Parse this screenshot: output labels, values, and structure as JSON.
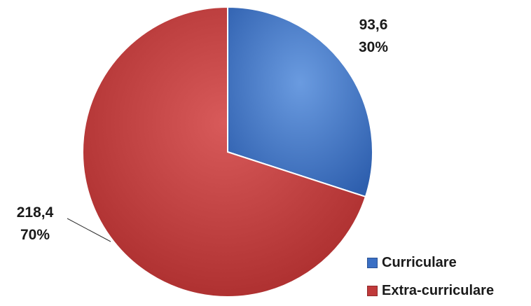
{
  "chart_data": {
    "type": "pie",
    "categories": [
      "Curriculare",
      "Extra-curriculare"
    ],
    "values": [
      93.6,
      218.4
    ],
    "value_labels": [
      "93,6",
      "218,4"
    ],
    "percent_labels": [
      "30%",
      "70%"
    ],
    "percents": [
      30,
      70
    ],
    "colors": [
      "#3a6fc4",
      "#c0393a"
    ],
    "start_angle_deg": 0,
    "direction": "clockwise",
    "legend_position": "bottom-right"
  },
  "legend": {
    "items": [
      {
        "label": "Curriculare",
        "color": "#3a6fc4"
      },
      {
        "label": "Extra-curriculare",
        "color": "#c0393a"
      }
    ]
  }
}
